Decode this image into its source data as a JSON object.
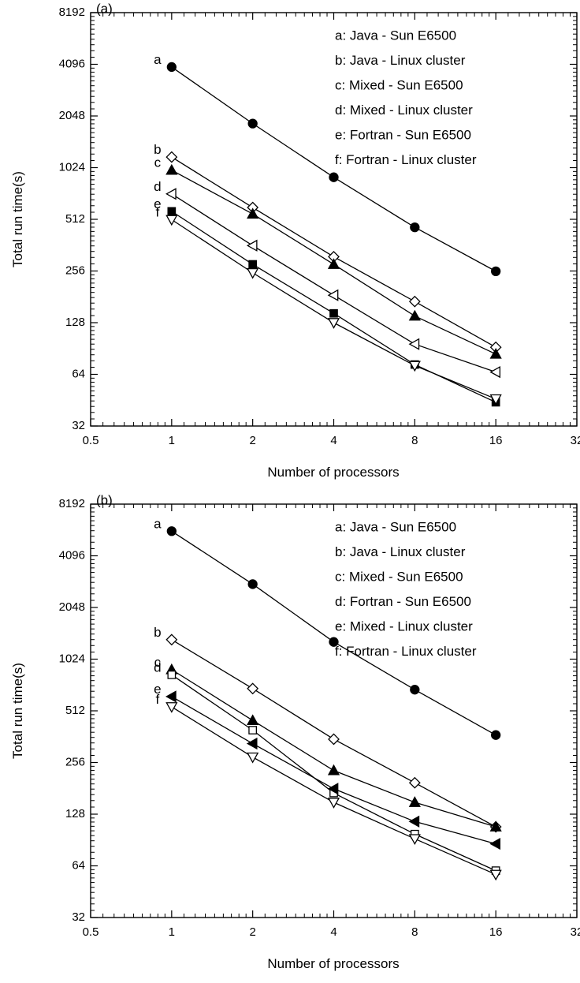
{
  "chart_data": [
    {
      "type": "line",
      "panel_label": "(a)",
      "xlabel": "Number of processors",
      "ylabel": "Total run time(s)",
      "x_scale": "log2",
      "y_scale": "log2",
      "xlim": [
        0.5,
        32
      ],
      "ylim": [
        32,
        8192
      ],
      "x_ticks": [
        0.5,
        1,
        2,
        4,
        8,
        16,
        32
      ],
      "x_tick_labels": [
        "0.5",
        "1",
        "2",
        "4",
        "8",
        "16",
        "32"
      ],
      "y_ticks": [
        32,
        64,
        128,
        256,
        512,
        1024,
        2048,
        4096,
        8192
      ],
      "y_tick_labels": [
        "32",
        "64",
        "128",
        "256",
        "512",
        "1024",
        "2048",
        "4096",
        "8192"
      ],
      "grid": false,
      "legend_position": "top-right",
      "x": [
        1,
        2,
        4,
        8,
        16
      ],
      "series": [
        {
          "label": "a",
          "legend": "a: Java - Sun E6500",
          "marker": "circle-filled",
          "values": [
            3950,
            1850,
            900,
            460,
            255
          ]
        },
        {
          "label": "b",
          "legend": "b: Java - Linux cluster",
          "marker": "diamond-open",
          "values": [
            1180,
            600,
            310,
            170,
            92
          ]
        },
        {
          "label": "c",
          "legend": "c: Mixed - Sun E6500",
          "marker": "triangle-up-filled",
          "values": [
            990,
            550,
            280,
            140,
            84
          ]
        },
        {
          "label": "d",
          "legend": "d: Mixed - Linux cluster",
          "marker": "triangle-left-open",
          "values": [
            720,
            360,
            185,
            96,
            66
          ]
        },
        {
          "label": "e",
          "legend": "e: Fortran - Sun E6500",
          "marker": "square-filled",
          "values": [
            570,
            280,
            145,
            73,
            44
          ]
        },
        {
          "label": "f",
          "legend": "f: Fortran - Linux cluster",
          "marker": "triangle-down-open",
          "values": [
            510,
            250,
            128,
            72,
            46
          ]
        }
      ]
    },
    {
      "type": "line",
      "panel_label": "(b)",
      "xlabel": "Number of processors",
      "ylabel": "Total run time(s)",
      "x_scale": "log2",
      "y_scale": "log2",
      "xlim": [
        0.5,
        32
      ],
      "ylim": [
        32,
        8192
      ],
      "x_ticks": [
        0.5,
        1,
        2,
        4,
        8,
        16,
        32
      ],
      "x_tick_labels": [
        "0.5",
        "1",
        "2",
        "4",
        "8",
        "16",
        "32"
      ],
      "y_ticks": [
        32,
        64,
        128,
        256,
        512,
        1024,
        2048,
        4096,
        8192
      ],
      "y_tick_labels": [
        "32",
        "64",
        "128",
        "256",
        "512",
        "1024",
        "2048",
        "4096",
        "8192"
      ],
      "grid": false,
      "legend_position": "top-right",
      "x": [
        1,
        2,
        4,
        8,
        16
      ],
      "series": [
        {
          "label": "a",
          "legend": "a: Java - Sun E6500",
          "marker": "circle-filled",
          "values": [
            5700,
            2800,
            1290,
            680,
            370
          ]
        },
        {
          "label": "b",
          "legend": "b: Java - Linux cluster",
          "marker": "diamond-open",
          "values": [
            1330,
            690,
            350,
            195,
            108
          ]
        },
        {
          "label": "c",
          "legend": "c: Mixed - Sun E6500",
          "marker": "triangle-up-filled",
          "values": [
            890,
            450,
            230,
            150,
            108
          ]
        },
        {
          "label": "d",
          "legend": "d: Fortran - Sun E6500",
          "marker": "square-open",
          "values": [
            830,
            395,
            170,
            98,
            60
          ]
        },
        {
          "label": "e",
          "legend": "e: Mixed - Linux cluster",
          "marker": "triangle-left-filled",
          "values": [
            620,
            330,
            180,
            116,
            86
          ]
        },
        {
          "label": "f",
          "legend": "f: Fortran - Linux cluster",
          "marker": "triangle-down-open",
          "values": [
            540,
            275,
            150,
            92,
            57
          ]
        }
      ]
    }
  ]
}
